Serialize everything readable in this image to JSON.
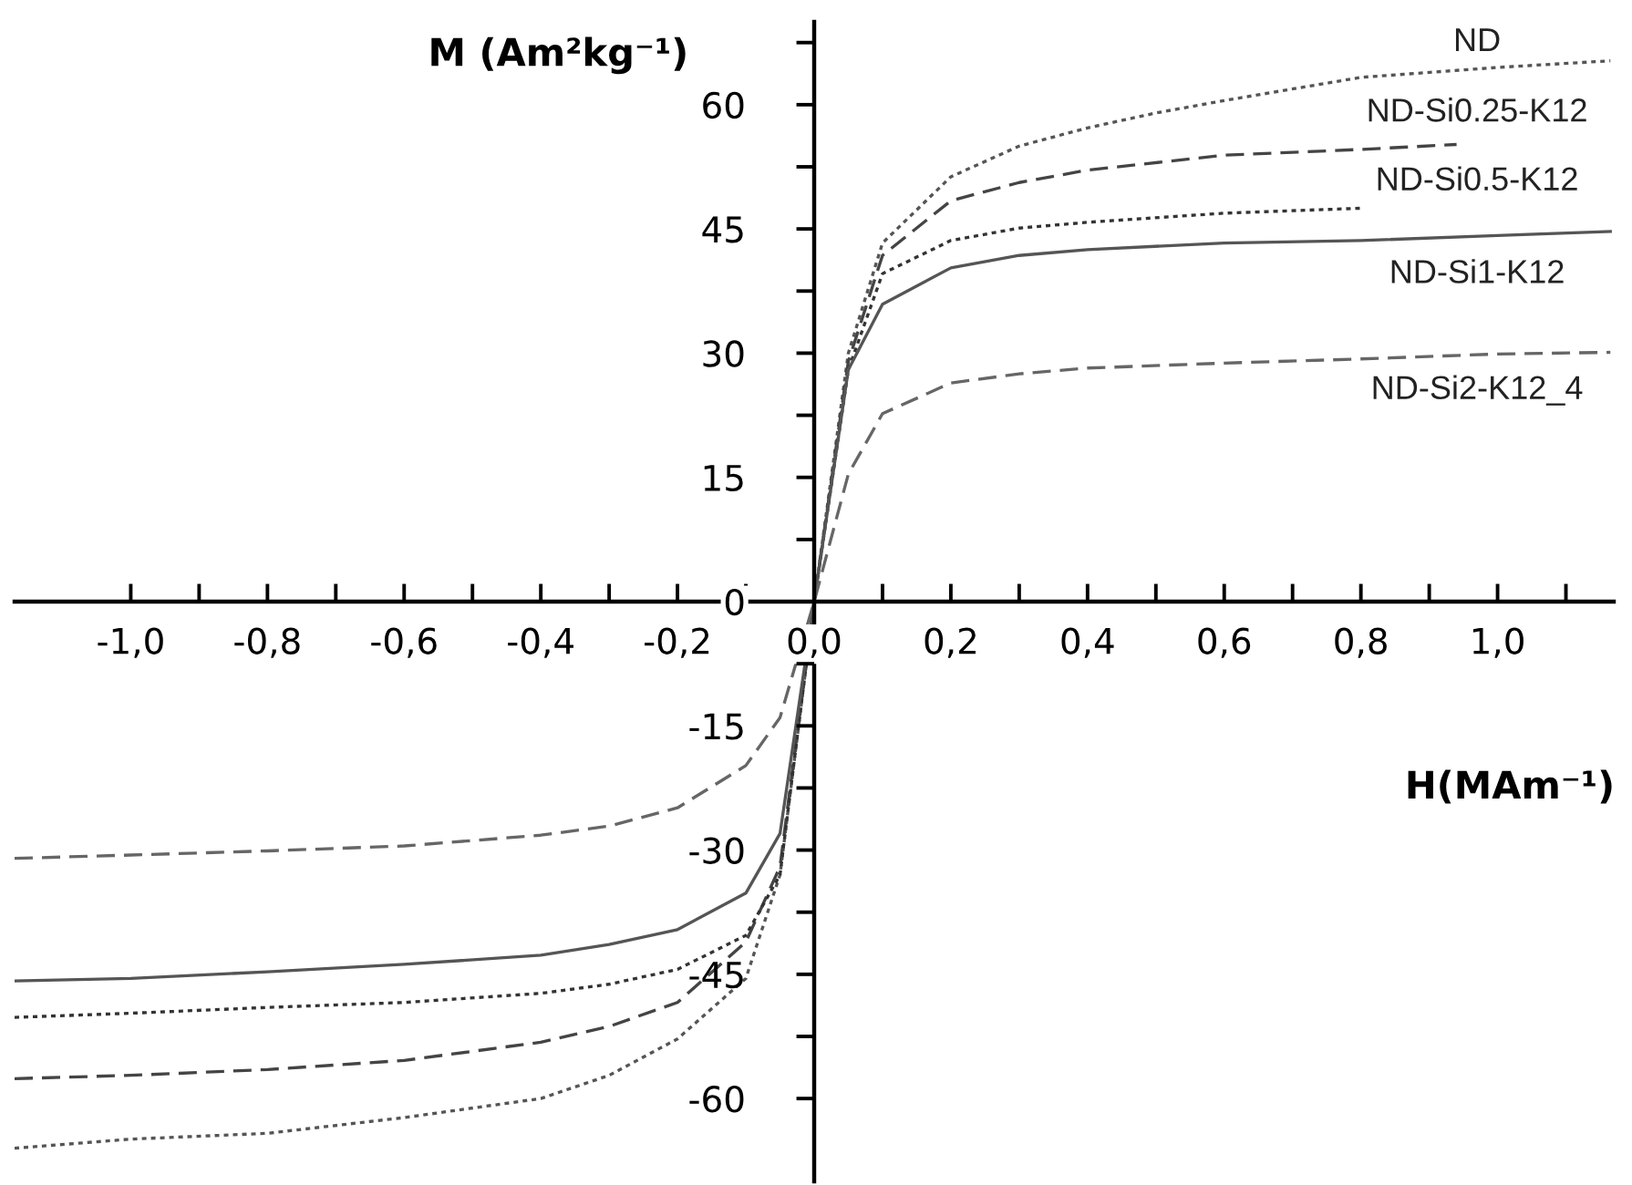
{
  "chart_data": {
    "type": "line",
    "xlabel": "H(MAm⁻¹)",
    "ylabel": "M (Am²kg⁻¹)",
    "xlim": [
      -1.17,
      1.17
    ],
    "ylim": [
      -70,
      70
    ],
    "xticks": [
      {
        "value": -1.0,
        "label": "-1,0"
      },
      {
        "value": -0.9,
        "label": null
      },
      {
        "value": -0.8,
        "label": "-0,8"
      },
      {
        "value": -0.7,
        "label": null
      },
      {
        "value": -0.6,
        "label": "-0,6"
      },
      {
        "value": -0.5,
        "label": null
      },
      {
        "value": -0.4,
        "label": "-0,4"
      },
      {
        "value": -0.3,
        "label": null
      },
      {
        "value": -0.2,
        "label": "-0,2"
      },
      {
        "value": -0.1,
        "label": null
      },
      {
        "value": 0,
        "label": "0,0"
      },
      {
        "value": 0.1,
        "label": null
      },
      {
        "value": 0.2,
        "label": "0,2"
      },
      {
        "value": 0.3,
        "label": null
      },
      {
        "value": 0.4,
        "label": "0,4"
      },
      {
        "value": 0.5,
        "label": null
      },
      {
        "value": 0.6,
        "label": "0,6"
      },
      {
        "value": 0.7,
        "label": null
      },
      {
        "value": 0.8,
        "label": "0,8"
      },
      {
        "value": 0.9,
        "label": null
      },
      {
        "value": 1.0,
        "label": "1,0"
      },
      {
        "value": 1.1,
        "label": null
      }
    ],
    "yticks": [
      -60,
      {
        "value": -52.5,
        "label": null
      },
      -45,
      {
        "value": -37.5,
        "label": null
      },
      -30,
      {
        "value": -22.5,
        "label": null
      },
      -15,
      {
        "value": -7.5,
        "label": null
      },
      0,
      {
        "value": 7.5,
        "label": null
      },
      15,
      {
        "value": 22.5,
        "label": null
      },
      30,
      {
        "value": 37.5,
        "label": null
      },
      45,
      {
        "value": 52.5,
        "label": null
      },
      60,
      {
        "value": 67.5,
        "label": null
      }
    ],
    "grid": false,
    "legend": false,
    "marker": "none",
    "series": [
      {
        "name": "ND",
        "color": "#555555",
        "line_style": "dotted",
        "x": [
          -1.17,
          -1.0,
          -0.8,
          -0.6,
          -0.4,
          -0.3,
          -0.2,
          -0.1,
          -0.05,
          0,
          0.05,
          0.1,
          0.2,
          0.3,
          0.4,
          0.5,
          0.6,
          0.8,
          1.0,
          1.165
        ],
        "values": [
          -66,
          -64.9,
          -64.2,
          -62.3,
          -60,
          -57.2,
          -52.8,
          -45.5,
          -33,
          0,
          30,
          43.3,
          51.3,
          55,
          57.2,
          59,
          60.5,
          63.3,
          64.5,
          65.3
        ]
      },
      {
        "name": "ND-Si0.25-K12",
        "color": "#444444",
        "line_style": "dashed",
        "x": [
          -1.17,
          -1.0,
          -0.8,
          -0.6,
          -0.4,
          -0.3,
          -0.2,
          -0.1,
          -0.05,
          0,
          0.05,
          0.1,
          0.2,
          0.3,
          0.4,
          0.6,
          0.8,
          0.94
        ],
        "values": [
          -57.6,
          -57.2,
          -56.5,
          -55.4,
          -53.2,
          -51.3,
          -48.4,
          -41.1,
          -32,
          0,
          29,
          41.8,
          48.4,
          50.6,
          52.1,
          53.9,
          54.6,
          55.2
        ]
      },
      {
        "name": "ND-Si0.5-K12",
        "color": "#333333",
        "line_style": "dotted",
        "x": [
          -1.17,
          -1.0,
          -0.8,
          -0.6,
          -0.4,
          -0.3,
          -0.2,
          -0.1,
          -0.05,
          0,
          0.05,
          0.1,
          0.2,
          0.3,
          0.4,
          0.6,
          0.8
        ],
        "values": [
          -50.2,
          -49.7,
          -49,
          -48.4,
          -47.3,
          -46.2,
          -44.4,
          -40.3,
          -33,
          0,
          28,
          39.6,
          43.6,
          45.1,
          45.8,
          46.9,
          47.5
        ]
      },
      {
        "name": "ND-Si1-K12",
        "color": "#555555",
        "line_style": "solid",
        "x": [
          -1.17,
          -1.0,
          -0.8,
          -0.6,
          -0.4,
          -0.3,
          -0.2,
          -0.1,
          -0.05,
          0,
          0.05,
          0.1,
          0.2,
          0.3,
          0.4,
          0.6,
          0.8,
          1.0,
          1.165
        ],
        "values": [
          -45.8,
          -45.5,
          -44.7,
          -43.8,
          -42.7,
          -41.4,
          -39.6,
          -35.2,
          -28,
          0,
          28,
          35.9,
          40.3,
          41.8,
          42.5,
          43.3,
          43.6,
          44.2,
          44.7
        ]
      },
      {
        "name": "ND-Si2-K12_4",
        "color": "#666666",
        "line_style": "dashed",
        "x": [
          -1.17,
          -1.0,
          -0.8,
          -0.6,
          -0.4,
          -0.3,
          -0.2,
          -0.1,
          -0.05,
          0,
          0.05,
          0.1,
          0.2,
          0.3,
          0.4,
          0.6,
          0.8,
          1.0,
          1.165
        ],
        "values": [
          -31,
          -30.6,
          -30.1,
          -29.5,
          -28.2,
          -27.1,
          -24.9,
          -19.8,
          -14,
          0,
          15.4,
          22.7,
          26.4,
          27.5,
          28.2,
          28.8,
          29.3,
          29.9,
          30.1
        ]
      }
    ]
  }
}
